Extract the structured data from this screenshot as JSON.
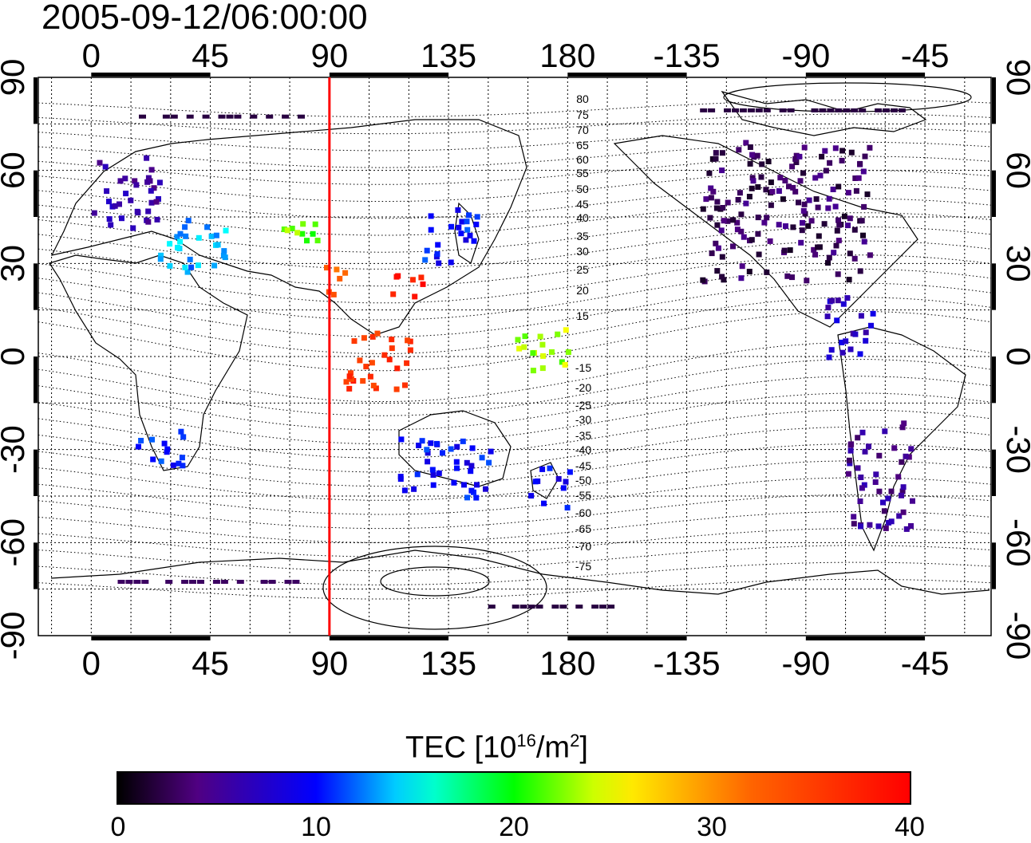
{
  "timestamp": "2005-09-12/06:00:00",
  "map": {
    "lon_axis_labels": [
      "0",
      "45",
      "90",
      "135",
      "180",
      "-135",
      "-90",
      "-45"
    ],
    "lat_axis_labels": [
      "90",
      "60",
      "30",
      "0",
      "-30",
      "-60",
      "-90"
    ],
    "magnetic_lat_labels_north": [
      "80",
      "75",
      "70",
      "65",
      "60",
      "55",
      "50",
      "45",
      "40",
      "35",
      "30",
      "25",
      "20",
      "15"
    ],
    "magnetic_lat_labels_south": [
      "-15",
      "-20",
      "-25",
      "-30",
      "-35",
      "-40",
      "-45",
      "-50",
      "-55",
      "-60",
      "-65",
      "-70",
      "-75"
    ],
    "marker_longitude": 90,
    "marker_color": "#ff0000"
  },
  "colorbar": {
    "title_prefix": "TEC  [10",
    "title_exp1": "16",
    "title_mid": "/m",
    "title_exp2": "2",
    "title_suffix": "]",
    "min": 0,
    "max": 40,
    "tick_labels": [
      "0",
      "10",
      "20",
      "30",
      "40"
    ]
  },
  "chart_data": {
    "type": "heatmap",
    "title": "2005-09-12/06:00:00",
    "colorbar_label": "TEC [10^16/m^2]",
    "value_range": [
      0,
      40
    ],
    "x_range": [
      -20,
      340
    ],
    "y_range": [
      -90,
      90
    ],
    "regions": [
      {
        "lon_min": 0,
        "lon_max": 25,
        "lat_min": 40,
        "lat_max": 65,
        "tec": 6
      },
      {
        "lon_min": 25,
        "lon_max": 55,
        "lat_min": 28,
        "lat_max": 45,
        "tec": 13
      },
      {
        "lon_min": 65,
        "lon_max": 85,
        "lat_min": 38,
        "lat_max": 47,
        "tec": 22
      },
      {
        "lon_min": 85,
        "lon_max": 95,
        "lat_min": 20,
        "lat_max": 30,
        "tec": 32
      },
      {
        "lon_min": 110,
        "lon_max": 125,
        "lat_min": 20,
        "lat_max": 28,
        "tec": 38
      },
      {
        "lon_min": 125,
        "lon_max": 145,
        "lat_min": 30,
        "lat_max": 50,
        "tec": 10
      },
      {
        "lon_min": 95,
        "lon_max": 120,
        "lat_min": -10,
        "lat_max": 10,
        "tec": 36
      },
      {
        "lon_min": 160,
        "lon_max": 180,
        "lat_min": -5,
        "lat_max": 10,
        "tec": 23
      },
      {
        "lon_min": 115,
        "lon_max": 150,
        "lat_min": -45,
        "lat_max": -25,
        "tec": 10
      },
      {
        "lon_min": 165,
        "lon_max": 180,
        "lat_min": -48,
        "lat_max": -35,
        "tec": 9
      },
      {
        "lon_min": 15,
        "lon_max": 35,
        "lat_min": -35,
        "lat_max": -22,
        "tec": 10
      },
      {
        "lon_min": 230,
        "lon_max": 295,
        "lat_min": 25,
        "lat_max": 70,
        "tec": 3
      },
      {
        "lon_min": 285,
        "lon_max": 310,
        "lat_min": -55,
        "lat_max": -20,
        "tec": 5
      },
      {
        "lon_min": 275,
        "lon_max": 295,
        "lat_min": 0,
        "lat_max": 20,
        "tec": 7
      }
    ]
  }
}
